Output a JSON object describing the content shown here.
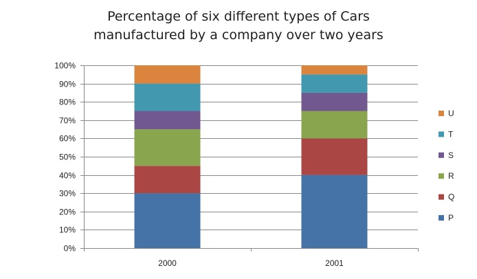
{
  "chart_data": {
    "type": "bar",
    "stacked": true,
    "title_lines": [
      "Percentage of six different types of Cars",
      "manufactured by a company over two years"
    ],
    "categories": [
      "2000",
      "2001"
    ],
    "series": [
      {
        "name": "P",
        "color": "#4572A7",
        "values": [
          30,
          40
        ]
      },
      {
        "name": "Q",
        "color": "#AA4643",
        "values": [
          15,
          20
        ]
      },
      {
        "name": "R",
        "color": "#89A54E",
        "values": [
          20,
          15
        ]
      },
      {
        "name": "S",
        "color": "#71588F",
        "values": [
          10,
          10
        ]
      },
      {
        "name": "T",
        "color": "#4198AF",
        "values": [
          15,
          10
        ]
      },
      {
        "name": "U",
        "color": "#DB843D",
        "values": [
          10,
          5
        ]
      }
    ],
    "yticks": [
      "0%",
      "10%",
      "20%",
      "30%",
      "40%",
      "50%",
      "60%",
      "70%",
      "80%",
      "90%",
      "100%"
    ],
    "ylim": [
      0,
      100
    ],
    "legend_position": "right",
    "grid": true
  }
}
